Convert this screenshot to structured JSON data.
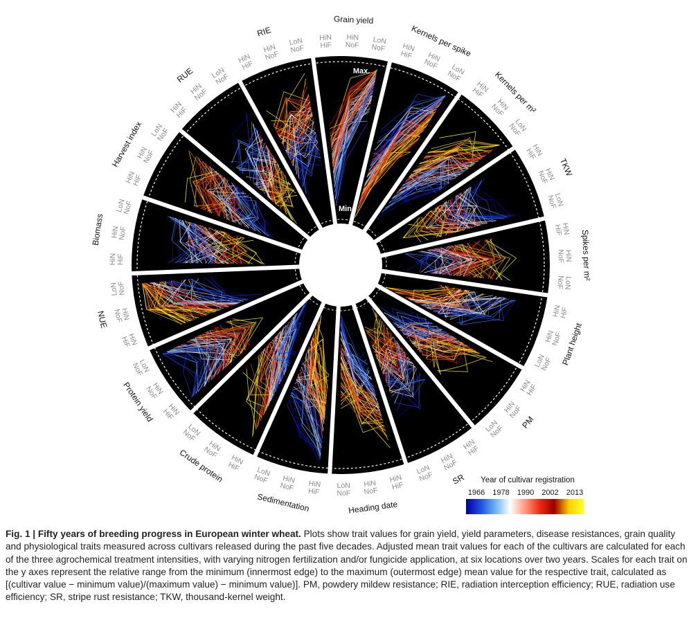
{
  "figure": {
    "axis_max_label": "Max.",
    "axis_min_label": "Min.",
    "legend": {
      "title": "Year of cultivar registration",
      "ticks": [
        "1966",
        "1978",
        "1990",
        "2002",
        "2013"
      ],
      "gradient_colors": [
        "#0000a0",
        "#1e4fe0",
        "#6fb4f0",
        "#ffffff",
        "#ff9a80",
        "#ee2b12",
        "#9a0000",
        "#ffd000",
        "#ffff30"
      ]
    }
  },
  "chart_data": {
    "type": "radial-parallel-coordinates",
    "description_axes": "Each sector is a trait; y axis runs from Min. (inner edge) to Max. (outer edge); lines are cultivars coloured by registration year",
    "traits": [
      {
        "name": "Grain yield",
        "treatments": [
          "HiN\nHiF",
          "HiN\nNoF",
          "LoN\nNoF"
        ]
      },
      {
        "name": "Kernels per spike",
        "treatments": [
          "HiN\nHiF",
          "HiN\nNoF",
          "LoN\nNoF"
        ]
      },
      {
        "name": "Kernels per m²",
        "treatments": [
          "HiN\nHiF",
          "HiN\nNoF",
          "LoN\nNoF"
        ]
      },
      {
        "name": "TKW",
        "treatments": [
          "HiN\nHiF",
          "HiN\nNoF",
          "LoN\nNoF"
        ]
      },
      {
        "name": "Spikes per m²",
        "treatments": [
          "HiN\nHiF",
          "HiN\nNoF",
          "LoN\nNoF"
        ]
      },
      {
        "name": "Plant height",
        "treatments": [
          "HiN\nHiF",
          "HiN\nNoF",
          "LoN\nNoF"
        ]
      },
      {
        "name": "PM",
        "treatments": [
          "HiN\nHiF",
          "HiN\nNoF",
          "LoN\nNoF"
        ]
      },
      {
        "name": "SR",
        "treatments": [
          "HiN\nHiF",
          "HiN\nNoF",
          "LoN\nNoF"
        ]
      },
      {
        "name": "Heading date",
        "treatments": [
          "HiN\nHiF",
          "HiN\nNoF",
          "LoN\nNoF"
        ]
      },
      {
        "name": "Sedimentation",
        "treatments": [
          "HiN\nHiF",
          "HiN\nNoF",
          "LoN\nNoF"
        ]
      },
      {
        "name": "Crude protein",
        "treatments": [
          "HiN\nHiF",
          "HiN\nNoF",
          "LoN\nNoF"
        ]
      },
      {
        "name": "Protein yield",
        "treatments": [
          "HiN\nHiF",
          "HiN\nNoF",
          "LoN\nNoF"
        ]
      },
      {
        "name": "NUE",
        "treatments": [
          "HiN\nHiF",
          "HiN\nNoF",
          "LoN\nNoF"
        ]
      },
      {
        "name": "Biomass",
        "treatments": [
          "HiN\nHiF",
          "HiN\nNoF",
          "LoN\nNoF"
        ]
      },
      {
        "name": "Harvest index",
        "treatments": [
          "HiN\nHiF",
          "HiN\nNoF",
          "LoN\nNoF"
        ]
      },
      {
        "name": "RUE",
        "treatments": [
          "HiN\nHiF",
          "HiN\nNoF",
          "LoN\nNoF"
        ]
      },
      {
        "name": "RIE",
        "treatments": [
          "HiN\nHiF",
          "HiN\nNoF",
          "LoN\nNoF"
        ]
      }
    ],
    "year_range": [
      1966,
      2013
    ],
    "ylim": [
      "Min.",
      "Max."
    ]
  },
  "caption": {
    "title": "Fig. 1 | Fifty years of breeding progress in European winter wheat.",
    "text": "Plots show trait values for grain yield, yield parameters, disease resistances, grain quality and physiological traits measured across cultivars released during the past five decades. Adjusted mean trait values for each of the cultivars are calculated for each of the three agrochemical treatment intensities, with varying nitrogen fertilization and/or fungicide application, at six locations over two years. Scales for each trait on the y axes represent the relative range from the minimum (innermost edge) to the maximum (outermost edge) mean value for the respective trait, calculated as [(cultivar value − minimum value)/(maximum value) − minimum value)]. PM, powdery mildew resistance; RIE, radiation interception efficiency; RUE, radiation use efficiency; SR, stripe rust resistance; TKW, thousand-kernel weight."
  }
}
